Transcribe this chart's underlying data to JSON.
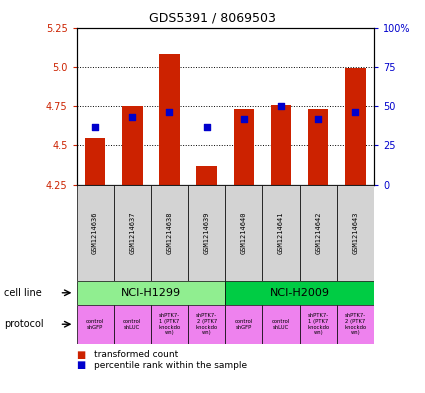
{
  "title": "GDS5391 / 8069503",
  "samples": [
    "GSM1214636",
    "GSM1214637",
    "GSM1214638",
    "GSM1214639",
    "GSM1214640",
    "GSM1214641",
    "GSM1214642",
    "GSM1214643"
  ],
  "transformed_counts": [
    4.55,
    4.75,
    5.08,
    4.37,
    4.73,
    4.76,
    4.73,
    4.99
  ],
  "percentile_ranks": [
    37,
    43,
    46,
    37,
    42,
    50,
    42,
    46
  ],
  "ylim_left": [
    4.25,
    5.25
  ],
  "yticks_left": [
    4.25,
    4.5,
    4.75,
    5.0,
    5.25
  ],
  "ylim_right": [
    0,
    100
  ],
  "yticks_right": [
    0,
    25,
    50,
    75,
    100
  ],
  "bar_color": "#cc2200",
  "dot_color": "#0000cc",
  "bar_bottom": 4.25,
  "cell_line_groups": [
    {
      "label": "NCI-H1299",
      "start": 0,
      "end": 3,
      "color": "#90ee90"
    },
    {
      "label": "NCI-H2009",
      "start": 4,
      "end": 7,
      "color": "#00cc44"
    }
  ],
  "protocols": [
    {
      "label": "control\nshGFP",
      "color": "#ee82ee"
    },
    {
      "label": "control\nshLUC",
      "color": "#ee82ee"
    },
    {
      "label": "shPTK7-\n1 (PTK7\nknockdo\nwn)",
      "color": "#ee82ee"
    },
    {
      "label": "shPTK7-\n2 (PTK7\nknockdo\nwn)",
      "color": "#ee82ee"
    },
    {
      "label": "control\nshGFP",
      "color": "#ee82ee"
    },
    {
      "label": "control\nshLUC",
      "color": "#ee82ee"
    },
    {
      "label": "shPTK7-\n1 (PTK7\nknockdo\nwn)",
      "color": "#ee82ee"
    },
    {
      "label": "shPTK7-\n2 (PTK7\nknockdo\nwn)",
      "color": "#ee82ee"
    }
  ],
  "legend_items": [
    {
      "label": "transformed count",
      "color": "#cc2200"
    },
    {
      "label": "percentile rank within the sample",
      "color": "#0000cc"
    }
  ],
  "cell_line_label": "cell line",
  "protocol_label": "protocol",
  "sample_box_color": "#d3d3d3",
  "left_tick_color": "#cc2200",
  "right_tick_color": "#0000cc"
}
